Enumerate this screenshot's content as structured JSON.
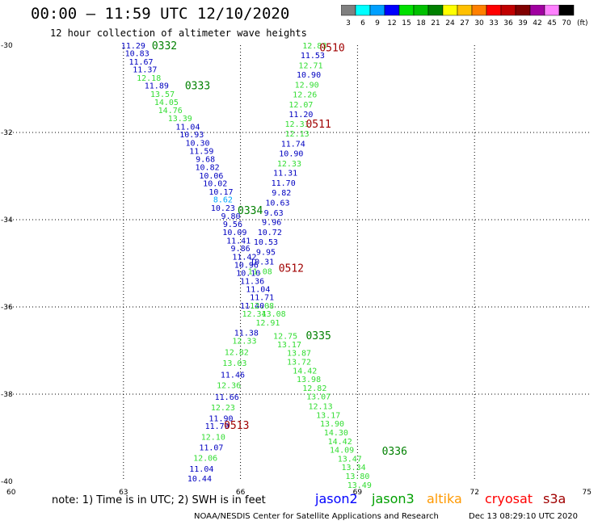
{
  "title": "00:00 – 11:59 UTC 12/10/2020",
  "subtitle": "12 hour collection of altimeter wave heights",
  "colorbar": {
    "levels": [
      "3",
      "6",
      "9",
      "12",
      "15",
      "18",
      "21",
      "24",
      "27",
      "30",
      "33",
      "36",
      "39",
      "42",
      "45",
      "70"
    ],
    "unit": "(ft)",
    "colors": [
      "#808080",
      "#00ffff",
      "#00a0ff",
      "#0000ff",
      "#00e000",
      "#00c000",
      "#008000",
      "#ffff00",
      "#ffc000",
      "#ff8000",
      "#ff0000",
      "#c00000",
      "#800000",
      "#a000a0",
      "#ff80ff",
      "#000000"
    ]
  },
  "text_colors": {
    "blue": "#0000c0",
    "lightgreen": "#33dd33",
    "cyan": "#00aaff",
    "darkgreen": "#008000",
    "darkred": "#a00000"
  },
  "axes": {
    "lon_ticks": [
      "60",
      "63",
      "66",
      "69",
      "72",
      "75"
    ],
    "lat_ticks": [
      "-30",
      "-32",
      "-34",
      "-36",
      "-38",
      "-40"
    ],
    "lon_range": [
      60,
      75
    ],
    "lat_range": [
      -30,
      -40
    ]
  },
  "passes": [
    {
      "label": "0332",
      "color": "darkgreen",
      "lon": 64.05,
      "lat": -30.0
    },
    {
      "label": "0333",
      "color": "darkgreen",
      "lon": 64.9,
      "lat": -30.92
    },
    {
      "label": "0334",
      "color": "darkgreen",
      "lon": 66.25,
      "lat": -33.78
    },
    {
      "label": "0335",
      "color": "darkgreen",
      "lon": 68.0,
      "lat": -36.65
    },
    {
      "label": "0336",
      "color": "darkgreen",
      "lon": 69.95,
      "lat": -39.3
    },
    {
      "label": "0510",
      "color": "darkred",
      "lon": 68.35,
      "lat": -30.05
    },
    {
      "label": "0511",
      "color": "darkred",
      "lon": 68.0,
      "lat": -31.8
    },
    {
      "label": "0512",
      "color": "darkred",
      "lon": 67.3,
      "lat": -35.1
    },
    {
      "label": "0513",
      "color": "darkred",
      "lon": 65.9,
      "lat": -38.7
    }
  ],
  "readings": [
    {
      "v": "11.29",
      "c": "blue",
      "lon": 63.25,
      "lat": -30.0
    },
    {
      "v": "10.83",
      "c": "blue",
      "lon": 63.35,
      "lat": -30.18
    },
    {
      "v": "11.67",
      "c": "blue",
      "lon": 63.45,
      "lat": -30.37
    },
    {
      "v": "11.37",
      "c": "blue",
      "lon": 63.55,
      "lat": -30.55
    },
    {
      "v": "12.18",
      "c": "lightgreen",
      "lon": 63.65,
      "lat": -30.74
    },
    {
      "v": "11.89",
      "c": "blue",
      "lon": 63.85,
      "lat": -30.92
    },
    {
      "v": "13.57",
      "c": "lightgreen",
      "lon": 64.0,
      "lat": -31.11
    },
    {
      "v": "14.05",
      "c": "lightgreen",
      "lon": 64.1,
      "lat": -31.3
    },
    {
      "v": "14.76",
      "c": "lightgreen",
      "lon": 64.2,
      "lat": -31.48
    },
    {
      "v": "13.39",
      "c": "lightgreen",
      "lon": 64.45,
      "lat": -31.67
    },
    {
      "v": "11.04",
      "c": "blue",
      "lon": 64.65,
      "lat": -31.86
    },
    {
      "v": "10.93",
      "c": "blue",
      "lon": 64.75,
      "lat": -32.04
    },
    {
      "v": "10.30",
      "c": "blue",
      "lon": 64.9,
      "lat": -32.23
    },
    {
      "v": "11.59",
      "c": "blue",
      "lon": 65.0,
      "lat": -32.42
    },
    {
      "v": "9.68",
      "c": "blue",
      "lon": 65.1,
      "lat": -32.6
    },
    {
      "v": "10.82",
      "c": "blue",
      "lon": 65.15,
      "lat": -32.79
    },
    {
      "v": "10.06",
      "c": "blue",
      "lon": 65.25,
      "lat": -32.98
    },
    {
      "v": "10.02",
      "c": "blue",
      "lon": 65.35,
      "lat": -33.16
    },
    {
      "v": "10.17",
      "c": "blue",
      "lon": 65.5,
      "lat": -33.35
    },
    {
      "v": "8.62",
      "c": "cyan",
      "lon": 65.55,
      "lat": -33.53
    },
    {
      "v": "10.23",
      "c": "blue",
      "lon": 65.55,
      "lat": -33.72
    },
    {
      "v": "9.80",
      "c": "blue",
      "lon": 65.75,
      "lat": -33.91
    },
    {
      "v": "9.56",
      "c": "blue",
      "lon": 65.8,
      "lat": -34.09
    },
    {
      "v": "10.09",
      "c": "blue",
      "lon": 65.85,
      "lat": -34.28
    },
    {
      "v": "11.41",
      "c": "blue",
      "lon": 65.95,
      "lat": -34.47
    },
    {
      "v": "9.86",
      "c": "blue",
      "lon": 66.0,
      "lat": -34.65
    },
    {
      "v": "11.42",
      "c": "blue",
      "lon": 66.1,
      "lat": -34.84
    },
    {
      "v": "10.96",
      "c": "blue",
      "lon": 66.15,
      "lat": -35.03
    },
    {
      "v": "10.10",
      "c": "blue",
      "lon": 66.2,
      "lat": -35.21
    },
    {
      "v": "11.36",
      "c": "blue",
      "lon": 66.3,
      "lat": -35.4
    },
    {
      "v": "11.04",
      "c": "blue",
      "lon": 66.45,
      "lat": -35.58
    },
    {
      "v": "11.71",
      "c": "blue",
      "lon": 66.55,
      "lat": -35.77
    },
    {
      "v": "11.40",
      "c": "blue",
      "lon": 66.3,
      "lat": -35.96
    },
    {
      "v": "12.34",
      "c": "lightgreen",
      "lon": 66.35,
      "lat": -36.15
    },
    {
      "v": "11.38",
      "c": "blue",
      "lon": 66.15,
      "lat": -36.58
    },
    {
      "v": "12.33",
      "c": "lightgreen",
      "lon": 66.1,
      "lat": -36.77
    },
    {
      "v": "12.82",
      "c": "lightgreen",
      "lon": 65.9,
      "lat": -37.03
    },
    {
      "v": "13.03",
      "c": "lightgreen",
      "lon": 65.85,
      "lat": -37.28
    },
    {
      "v": "11.46",
      "c": "blue",
      "lon": 65.8,
      "lat": -37.55
    },
    {
      "v": "12.36",
      "c": "lightgreen",
      "lon": 65.7,
      "lat": -37.79
    },
    {
      "v": "11.66",
      "c": "blue",
      "lon": 65.65,
      "lat": -38.06
    },
    {
      "v": "12.23",
      "c": "lightgreen",
      "lon": 65.55,
      "lat": -38.3
    },
    {
      "v": "11.90",
      "c": "blue",
      "lon": 65.5,
      "lat": -38.55
    },
    {
      "v": "11.79",
      "c": "blue",
      "lon": 65.4,
      "lat": -38.72
    },
    {
      "v": "12.10",
      "c": "lightgreen",
      "lon": 65.3,
      "lat": -38.97
    },
    {
      "v": "11.07",
      "c": "blue",
      "lon": 65.25,
      "lat": -39.21
    },
    {
      "v": "12.06",
      "c": "lightgreen",
      "lon": 65.1,
      "lat": -39.45
    },
    {
      "v": "11.04",
      "c": "blue",
      "lon": 65.0,
      "lat": -39.7
    },
    {
      "v": "10.44",
      "c": "blue",
      "lon": 64.95,
      "lat": -39.93
    },
    {
      "v": "12.83",
      "c": "lightgreen",
      "lon": 67.9,
      "lat": -30.0
    },
    {
      "v": "11.53",
      "c": "blue",
      "lon": 67.85,
      "lat": -30.22
    },
    {
      "v": "12.71",
      "c": "lightgreen",
      "lon": 67.8,
      "lat": -30.45
    },
    {
      "v": "10.90",
      "c": "blue",
      "lon": 67.75,
      "lat": -30.67
    },
    {
      "v": "12.90",
      "c": "lightgreen",
      "lon": 67.7,
      "lat": -30.9
    },
    {
      "v": "12.26",
      "c": "lightgreen",
      "lon": 67.65,
      "lat": -31.12
    },
    {
      "v": "12.07",
      "c": "lightgreen",
      "lon": 67.55,
      "lat": -31.35
    },
    {
      "v": "11.20",
      "c": "blue",
      "lon": 67.55,
      "lat": -31.57
    },
    {
      "v": "12.31",
      "c": "lightgreen",
      "lon": 67.45,
      "lat": -31.8
    },
    {
      "v": "12.13",
      "c": "lightgreen",
      "lon": 67.45,
      "lat": -32.02
    },
    {
      "v": "11.74",
      "c": "blue",
      "lon": 67.35,
      "lat": -32.25
    },
    {
      "v": "10.90",
      "c": "blue",
      "lon": 67.3,
      "lat": -32.47
    },
    {
      "v": "12.33",
      "c": "lightgreen",
      "lon": 67.25,
      "lat": -32.7
    },
    {
      "v": "11.31",
      "c": "blue",
      "lon": 67.15,
      "lat": -32.92
    },
    {
      "v": "11.70",
      "c": "blue",
      "lon": 67.1,
      "lat": -33.15
    },
    {
      "v": "9.82",
      "c": "blue",
      "lon": 67.05,
      "lat": -33.37
    },
    {
      "v": "10.63",
      "c": "blue",
      "lon": 66.95,
      "lat": -33.6
    },
    {
      "v": "9.63",
      "c": "blue",
      "lon": 66.85,
      "lat": -33.83
    },
    {
      "v": "9.96",
      "c": "blue",
      "lon": 66.8,
      "lat": -34.05
    },
    {
      "v": "10.72",
      "c": "blue",
      "lon": 66.75,
      "lat": -34.28
    },
    {
      "v": "10.53",
      "c": "blue",
      "lon": 66.65,
      "lat": -34.5
    },
    {
      "v": "9.95",
      "c": "blue",
      "lon": 66.65,
      "lat": -34.73
    },
    {
      "v": "10.31",
      "c": "blue",
      "lon": 66.55,
      "lat": -34.95
    },
    {
      "v": "11.08",
      "c": "lightgreen",
      "lon": 66.5,
      "lat": -35.18
    },
    {
      "v": "12.08",
      "c": "lightgreen",
      "lon": 66.55,
      "lat": -35.96
    },
    {
      "v": "13.08",
      "c": "lightgreen",
      "lon": 66.85,
      "lat": -36.15
    },
    {
      "v": "12.91",
      "c": "lightgreen",
      "lon": 66.7,
      "lat": -36.35
    },
    {
      "v": "12.75",
      "c": "lightgreen",
      "lon": 67.15,
      "lat": -36.66
    },
    {
      "v": "13.17",
      "c": "lightgreen",
      "lon": 67.25,
      "lat": -36.85
    },
    {
      "v": "13.87",
      "c": "lightgreen",
      "lon": 67.5,
      "lat": -37.05
    },
    {
      "v": "13.72",
      "c": "lightgreen",
      "lon": 67.5,
      "lat": -37.25
    },
    {
      "v": "14.42",
      "c": "lightgreen",
      "lon": 67.65,
      "lat": -37.45
    },
    {
      "v": "13.98",
      "c": "lightgreen",
      "lon": 67.75,
      "lat": -37.65
    },
    {
      "v": "12.82",
      "c": "lightgreen",
      "lon": 67.9,
      "lat": -37.85
    },
    {
      "v": "13.07",
      "c": "lightgreen",
      "lon": 68.0,
      "lat": -38.05
    },
    {
      "v": "12.13",
      "c": "lightgreen",
      "lon": 68.05,
      "lat": -38.27
    },
    {
      "v": "13.17",
      "c": "lightgreen",
      "lon": 68.25,
      "lat": -38.47
    },
    {
      "v": "13.90",
      "c": "lightgreen",
      "lon": 68.35,
      "lat": -38.67
    },
    {
      "v": "14.30",
      "c": "lightgreen",
      "lon": 68.45,
      "lat": -38.87
    },
    {
      "v": "14.42",
      "c": "lightgreen",
      "lon": 68.55,
      "lat": -39.07
    },
    {
      "v": "14.09",
      "c": "lightgreen",
      "lon": 68.6,
      "lat": -39.27
    },
    {
      "v": "13.47",
      "c": "lightgreen",
      "lon": 68.8,
      "lat": -39.47
    },
    {
      "v": "13.34",
      "c": "lightgreen",
      "lon": 68.9,
      "lat": -39.67
    },
    {
      "v": "13.80",
      "c": "lightgreen",
      "lon": 69.0,
      "lat": -39.87
    },
    {
      "v": "13.49",
      "c": "lightgreen",
      "lon": 69.05,
      "lat": -40.07
    }
  ],
  "note": "note:  1) Time is in UTC;  2) SWH is in feet",
  "legend": [
    {
      "name": "jason2",
      "color": "#0000ff"
    },
    {
      "name": "jason3",
      "color": "#00a000"
    },
    {
      "name": "altika",
      "color": "#ff9900"
    },
    {
      "name": "cryosat",
      "color": "#ff0000"
    },
    {
      "name": "s3a",
      "color": "#a00000"
    }
  ],
  "footer_left": "NOAA/NESDIS Center for Satellite Applications and Research",
  "footer_right": "Dec 13 08:29:10 UTC 2020"
}
